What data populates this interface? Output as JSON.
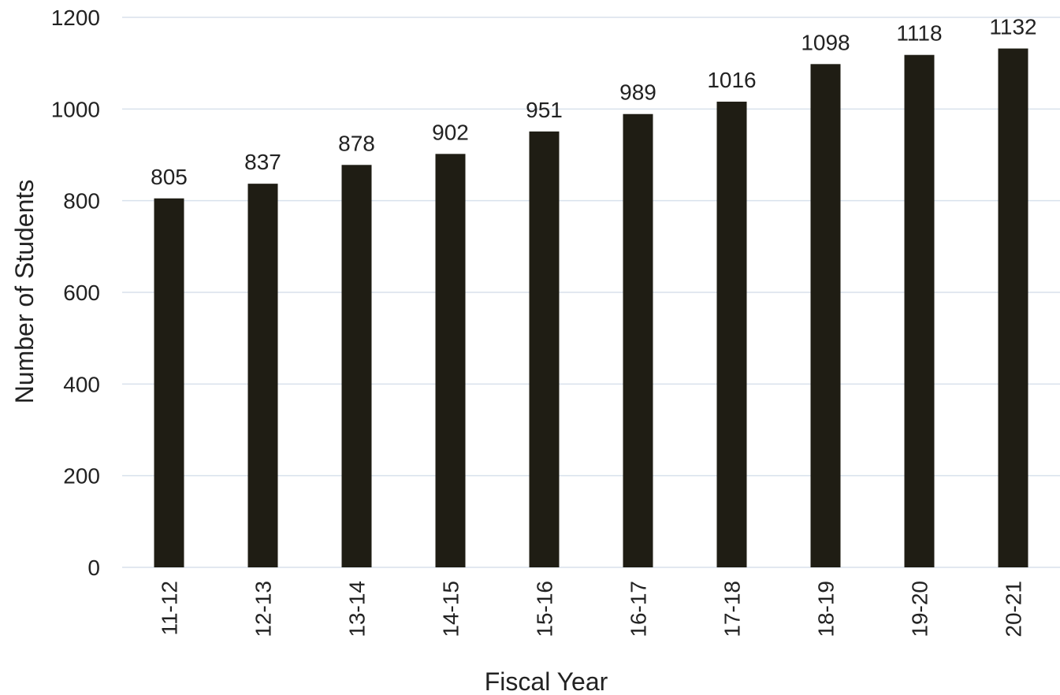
{
  "chart_data": {
    "type": "bar",
    "title": "",
    "xlabel": "Fiscal Year",
    "ylabel": "Number of Students",
    "categories": [
      "11-12",
      "12-13",
      "13-14",
      "14-15",
      "15-16",
      "16-17",
      "17-18",
      "18-19",
      "19-20",
      "20-21"
    ],
    "values": [
      805,
      837,
      878,
      902,
      951,
      989,
      1016,
      1098,
      1118,
      1132
    ],
    "ylim": [
      0,
      1200
    ],
    "yticks": [
      0,
      200,
      400,
      600,
      800,
      1000,
      1200
    ],
    "grid": true,
    "legend": "none",
    "bar_color": "#1f1d14",
    "grid_color": "#d9e1ec"
  }
}
